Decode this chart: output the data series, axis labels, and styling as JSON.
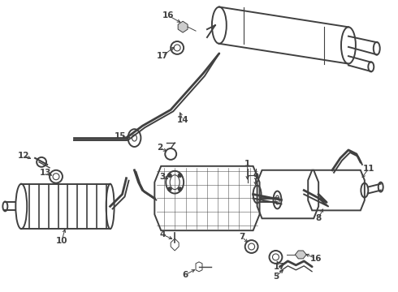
{
  "bg_color": "#ffffff",
  "line_color": "#404040",
  "fig_width": 4.9,
  "fig_height": 3.6,
  "dpi": 100,
  "lw_main": 1.4,
  "lw_thin": 0.8,
  "lw_thick": 2.0
}
